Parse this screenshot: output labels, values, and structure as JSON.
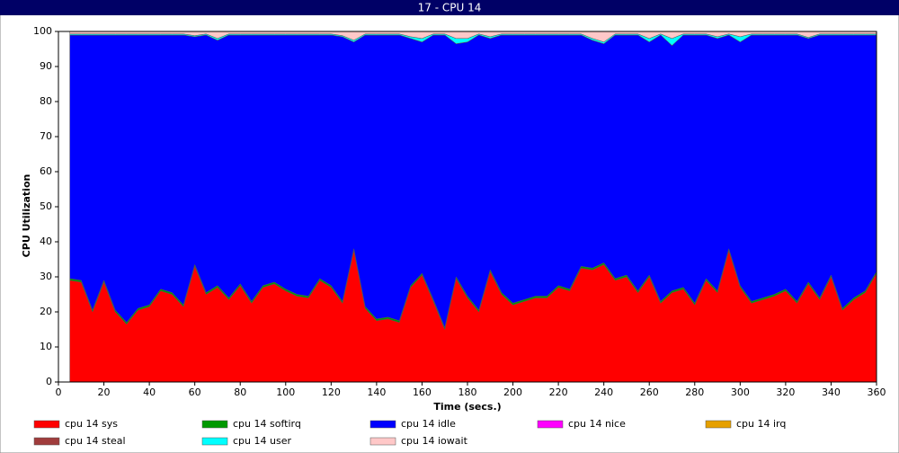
{
  "chart_data": {
    "type": "stacked_area",
    "title": "17 - CPU 14",
    "xlabel": "Time (secs.)",
    "ylabel": "CPU Utilization",
    "x": [
      5,
      10,
      15,
      20,
      25,
      30,
      35,
      40,
      45,
      50,
      55,
      60,
      65,
      70,
      75,
      80,
      85,
      90,
      95,
      100,
      105,
      110,
      115,
      120,
      125,
      130,
      135,
      140,
      145,
      150,
      155,
      160,
      165,
      170,
      175,
      180,
      185,
      190,
      195,
      200,
      205,
      210,
      215,
      220,
      225,
      230,
      235,
      240,
      245,
      250,
      255,
      260,
      265,
      270,
      275,
      280,
      285,
      290,
      295,
      300,
      305,
      310,
      315,
      320,
      325,
      330,
      335,
      340,
      345,
      350,
      355,
      360
    ],
    "xlim": [
      0,
      360
    ],
    "xticks": [
      0,
      20,
      40,
      60,
      80,
      100,
      120,
      140,
      160,
      180,
      200,
      220,
      240,
      260,
      280,
      300,
      320,
      340,
      360
    ],
    "ylim": [
      0,
      100
    ],
    "yticks": [
      0,
      10,
      20,
      30,
      40,
      50,
      60,
      70,
      80,
      90,
      100
    ],
    "series": [
      {
        "name": "cpu 14 sys",
        "color": "#ff0000",
        "values": [
          29,
          28.5,
          20,
          28.5,
          20,
          16.5,
          20.5,
          21.5,
          26,
          25,
          21.5,
          33,
          25,
          27,
          23.5,
          27.5,
          22.5,
          27,
          28,
          26,
          24.5,
          24,
          29,
          27,
          22.5,
          37.5,
          21,
          17.5,
          18,
          17,
          27,
          30.5,
          23,
          15,
          29.5,
          24,
          20,
          31.5,
          25,
          22,
          23,
          24,
          24,
          27,
          26,
          32.5,
          32,
          33.5,
          29,
          30,
          25.5,
          30,
          22.5,
          25.5,
          26.5,
          22,
          29,
          25.5,
          37.5,
          27,
          22.5,
          23.5,
          24.5,
          26,
          22.5,
          28,
          23.5,
          30,
          20.5,
          23.5,
          25.5,
          31
        ]
      },
      {
        "name": "cpu 14 softirq",
        "color": "#009900",
        "values": [
          0.5,
          0.5,
          0.5,
          0.5,
          0.5,
          0.5,
          0.5,
          0.5,
          0.5,
          0.5,
          0.5,
          0.5,
          0.5,
          0.5,
          0.5,
          0.5,
          0.5,
          0.5,
          0.5,
          0.5,
          0.5,
          0.5,
          0.5,
          0.5,
          0.5,
          0.5,
          0.5,
          0.5,
          0.5,
          0.5,
          0.5,
          0.5,
          0.5,
          0.5,
          0.5,
          0.5,
          0.5,
          0.5,
          0.5,
          0.5,
          0.5,
          0.5,
          0.5,
          0.5,
          0.5,
          0.5,
          0.5,
          0.5,
          0.5,
          0.5,
          0.5,
          0.5,
          0.5,
          0.5,
          0.5,
          0.5,
          0.5,
          0.5,
          0.5,
          0.5,
          0.5,
          0.5,
          0.5,
          0.5,
          0.5,
          0.5,
          0.5,
          0.5,
          0.5,
          0.5,
          0.5,
          0.5
        ]
      },
      {
        "name": "cpu 14 idle",
        "color": "#0000ff",
        "values": [
          69.5,
          70,
          78.5,
          70,
          78.5,
          82,
          78,
          77,
          72.5,
          73.5,
          77,
          65,
          73.5,
          70,
          75,
          71,
          76,
          71.5,
          70.5,
          72.5,
          74,
          74.5,
          69.5,
          71.5,
          75.5,
          59,
          77.5,
          81,
          80.5,
          81.5,
          70.5,
          66,
          75.5,
          83.5,
          66.5,
          72.5,
          78.5,
          66,
          73.5,
          76.5,
          75.5,
          74.5,
          74.5,
          71.5,
          72.5,
          66,
          65,
          62.5,
          69.5,
          68.5,
          73,
          66.5,
          76,
          70,
          72,
          76.5,
          69.5,
          72,
          61,
          69.5,
          76,
          75,
          74,
          72.5,
          76,
          69.5,
          75,
          68.5,
          78,
          75,
          73,
          67.5
        ]
      },
      {
        "name": "cpu 14 nice",
        "color": "#ff00ff",
        "values": [
          0,
          0,
          0,
          0,
          0,
          0,
          0,
          0,
          0,
          0,
          0,
          0,
          0,
          0,
          0,
          0,
          0,
          0,
          0,
          0,
          0,
          0,
          0,
          0,
          0,
          0,
          0,
          0,
          0,
          0,
          0,
          0,
          0,
          0,
          0,
          0,
          0,
          0,
          0,
          0,
          0,
          0,
          0,
          0,
          0,
          0,
          0,
          0,
          0,
          0,
          0,
          0,
          0,
          0,
          0,
          0,
          0,
          0,
          0,
          0,
          0,
          0,
          0,
          0,
          0,
          0,
          0,
          0,
          0,
          0,
          0,
          0
        ]
      },
      {
        "name": "cpu 14 irq",
        "color": "#e6a000",
        "values": [
          0,
          0,
          0,
          0,
          0,
          0,
          0,
          0,
          0,
          0,
          0,
          0,
          0,
          0,
          0,
          0,
          0,
          0,
          0,
          0,
          0,
          0,
          0,
          0,
          0,
          0,
          0,
          0,
          0,
          0,
          0,
          0,
          0,
          0,
          0,
          0,
          0,
          0,
          0,
          0,
          0,
          0,
          0,
          0,
          0,
          0,
          0,
          0,
          0,
          0,
          0,
          0,
          0,
          0,
          0,
          0,
          0,
          0,
          0,
          0,
          0,
          0,
          0,
          0,
          0,
          0,
          0,
          0,
          0,
          0,
          0,
          0
        ]
      },
      {
        "name": "cpu 14 steal",
        "color": "#a03c3c",
        "values": [
          0,
          0,
          0,
          0,
          0,
          0,
          0,
          0,
          0,
          0,
          0,
          0,
          0,
          0,
          0,
          0,
          0,
          0,
          0,
          0,
          0,
          0,
          0,
          0,
          0,
          0,
          0,
          0,
          0,
          0,
          0,
          0,
          0,
          0,
          0,
          0,
          0,
          0,
          0,
          0,
          0,
          0,
          0,
          0,
          0,
          0,
          0,
          0,
          0,
          0,
          0,
          0,
          0,
          0,
          0,
          0,
          0,
          0,
          0,
          0,
          0,
          0,
          0,
          0,
          0,
          0,
          0,
          0,
          0,
          0,
          0,
          0
        ]
      },
      {
        "name": "cpu 14 user",
        "color": "#00ffff",
        "values": [
          0.3,
          0.3,
          0.3,
          0.3,
          0.3,
          0.3,
          0.3,
          0.3,
          0.3,
          0.3,
          0.3,
          0.3,
          0.3,
          0.5,
          0.3,
          0.3,
          0.3,
          0.3,
          0.3,
          0.3,
          0.3,
          0.3,
          0.3,
          0.3,
          0.3,
          0.5,
          0.3,
          0.3,
          0.3,
          0.3,
          0.5,
          1,
          0.3,
          0.3,
          1.5,
          1,
          0.3,
          0.5,
          0.3,
          0.3,
          0.3,
          0.3,
          0.3,
          0.3,
          0.3,
          0.3,
          0.5,
          0.5,
          0.3,
          0.3,
          0.3,
          1,
          0.3,
          2,
          0.3,
          0.3,
          0.3,
          0.5,
          0.3,
          1.5,
          0.3,
          0.3,
          0.3,
          0.3,
          0.3,
          0.3,
          0.3,
          0.3,
          0.3,
          0.3,
          0.3,
          0.3
        ]
      },
      {
        "name": "cpu 14 iowait",
        "color": "#ffc8c8",
        "values": [
          0.7,
          0.7,
          0.7,
          0.7,
          0.7,
          0.7,
          0.7,
          0.7,
          0.7,
          0.7,
          0.7,
          1.2,
          0.7,
          2,
          0.7,
          0.7,
          0.7,
          0.7,
          0.7,
          0.7,
          0.7,
          0.7,
          0.7,
          0.7,
          1.2,
          2.5,
          0.7,
          0.7,
          0.7,
          0.7,
          1.5,
          2,
          0.7,
          0.7,
          2,
          2,
          0.7,
          1.5,
          0.7,
          0.7,
          0.7,
          0.7,
          0.7,
          0.7,
          0.7,
          0.7,
          2,
          3,
          0.7,
          0.7,
          0.7,
          2,
          0.7,
          2,
          0.7,
          0.7,
          0.7,
          1.5,
          0.7,
          1.5,
          0.7,
          0.7,
          0.7,
          0.7,
          0.7,
          1.7,
          0.7,
          0.7,
          0.7,
          0.7,
          0.7,
          0.7
        ]
      }
    ]
  }
}
